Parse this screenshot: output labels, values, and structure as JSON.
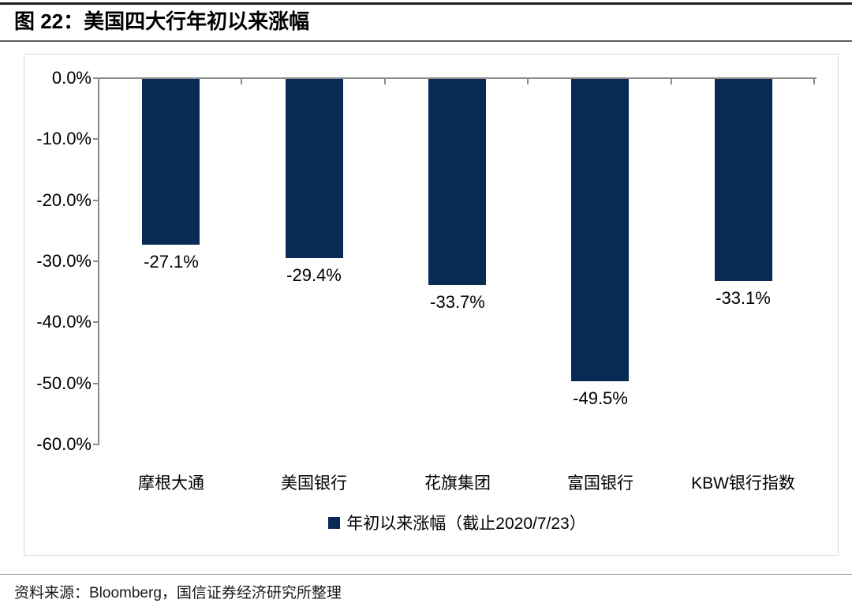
{
  "figure": {
    "number_title": "图 22：美国四大行年初以来涨幅",
    "source": "资料来源：Bloomberg，国信证券经济研究所整理"
  },
  "chart_data": {
    "type": "bar",
    "title": "美国四大行年初以来涨幅",
    "categories": [
      "摩根大通",
      "美国银行",
      "花旗集团",
      "富国银行",
      "KBW银行指数"
    ],
    "values": [
      -27.1,
      -29.4,
      -33.7,
      -49.5,
      -33.1
    ],
    "value_labels": [
      "-27.1%",
      "-29.4%",
      "-33.7%",
      "-49.5%",
      "-33.1%"
    ],
    "legend_label": "年初以来涨幅（截止2020/7/23）",
    "legend_position": "bottom",
    "y_axis": {
      "tick_labels": [
        "0.0%",
        "-10.0%",
        "-20.0%",
        "-30.0%",
        "-40.0%",
        "-50.0%",
        "-60.0%"
      ],
      "tick_values": [
        0,
        -10,
        -20,
        -30,
        -40,
        -50,
        -60
      ]
    },
    "ylim": [
      -60,
      0
    ],
    "grid": false,
    "bar_color": "#082b55",
    "axis_color": "#8c8c8c"
  }
}
